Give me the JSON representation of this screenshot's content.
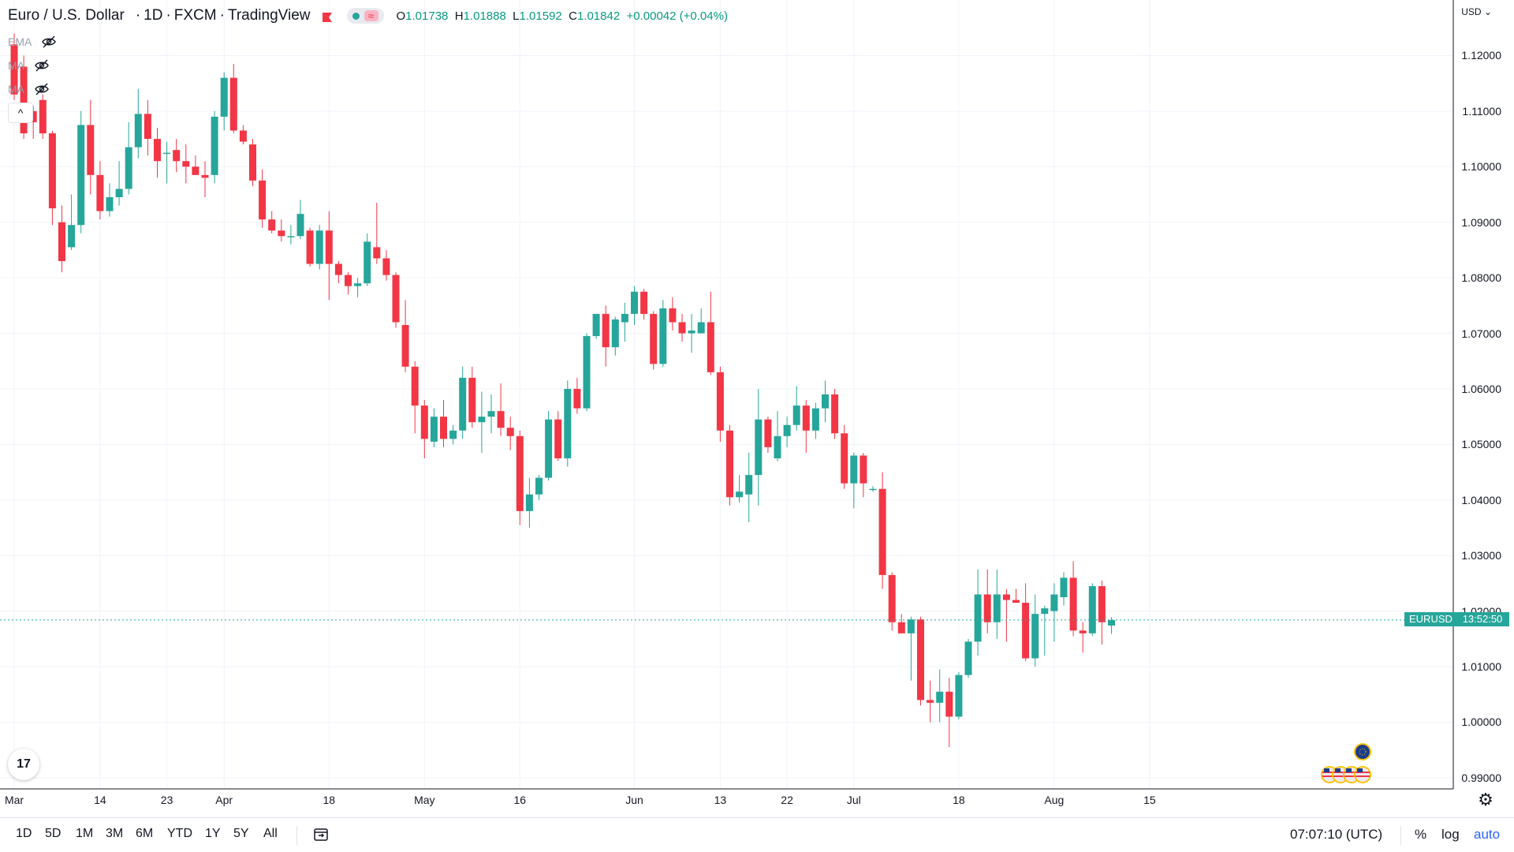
{
  "header": {
    "title": "Euro / U.S. Dollar",
    "interval": "1D",
    "exchange": "FXCM",
    "source": "TradingView",
    "ohlc": {
      "o_label": "O",
      "o": "1.01738",
      "h_label": "H",
      "h": "1.01888",
      "l_label": "L",
      "l": "1.01592",
      "c_label": "C",
      "c": "1.01842",
      "change": "+0.00042 (+0.04%)"
    }
  },
  "indicators": [
    {
      "label": "EMA",
      "icon": "eye-off-icon"
    },
    {
      "label": "MA",
      "icon": "eye-off-icon"
    },
    {
      "label": "MA",
      "icon": "eye-off-icon"
    }
  ],
  "collapse_label": "^",
  "currency_label": "USD",
  "price_scale_mode": "auto",
  "symbol_badge": "EURUSD",
  "countdown": "13:52:50",
  "logo_text": "17",
  "bottom_bar": {
    "ranges": [
      "1D",
      "5D",
      "1M",
      "3M",
      "6M",
      "YTD",
      "1Y",
      "5Y",
      "All"
    ],
    "clock": "07:07:10 (UTC)",
    "percent": "%",
    "log": "log",
    "auto": "auto"
  },
  "colors": {
    "up": "#26a69a",
    "down": "#f23645",
    "grid": "#f0f3fa",
    "axis": "#131722"
  },
  "chart_data": {
    "type": "candlestick",
    "title": "Euro / U.S. Dollar",
    "symbol": "EURUSD",
    "interval": "1D",
    "ylim": [
      0.988,
      1.13
    ],
    "y_ticks": [
      "1.12000",
      "1.11000",
      "1.10000",
      "1.09000",
      "1.08000",
      "1.07000",
      "1.06000",
      "1.05000",
      "1.04000",
      "1.03000",
      "1.02000",
      "1.01000",
      "1.00000",
      "0.99000"
    ],
    "x_ticks": [
      {
        "label": "Mar",
        "index": 0
      },
      {
        "label": "14",
        "index": 9
      },
      {
        "label": "23",
        "index": 16
      },
      {
        "label": "Apr",
        "index": 22
      },
      {
        "label": "18",
        "index": 33
      },
      {
        "label": "May",
        "index": 43
      },
      {
        "label": "16",
        "index": 53
      },
      {
        "label": "Jun",
        "index": 65
      },
      {
        "label": "13",
        "index": 74
      },
      {
        "label": "22",
        "index": 81
      },
      {
        "label": "Jul",
        "index": 88
      },
      {
        "label": "18",
        "index": 99
      },
      {
        "label": "Aug",
        "index": 109
      },
      {
        "label": "15",
        "index": 119
      }
    ],
    "candles": [
      {
        "o": 1.122,
        "h": 1.124,
        "l": 1.112,
        "c": 1.113
      },
      {
        "o": 1.118,
        "h": 1.12,
        "l": 1.105,
        "c": 1.106
      },
      {
        "o": 1.11,
        "h": 1.111,
        "l": 1.105,
        "c": 1.108
      },
      {
        "o": 1.112,
        "h": 1.113,
        "l": 1.105,
        "c": 1.106
      },
      {
        "o": 1.106,
        "h": 1.1065,
        "l": 1.0895,
        "c": 1.0925
      },
      {
        "o": 1.09,
        "h": 1.093,
        "l": 1.081,
        "c": 1.083
      },
      {
        "o": 1.0855,
        "h": 1.095,
        "l": 1.085,
        "c": 1.0895
      },
      {
        "o": 1.0895,
        "h": 1.11,
        "l": 1.088,
        "c": 1.1075
      },
      {
        "o": 1.1075,
        "h": 1.112,
        "l": 1.095,
        "c": 1.0985
      },
      {
        "o": 1.0985,
        "h": 1.101,
        "l": 1.0905,
        "c": 1.092
      },
      {
        "o": 1.092,
        "h": 1.097,
        "l": 1.091,
        "c": 1.0945
      },
      {
        "o": 1.0945,
        "h": 1.101,
        "l": 1.093,
        "c": 1.096
      },
      {
        "o": 1.096,
        "h": 1.108,
        "l": 1.095,
        "c": 1.1035
      },
      {
        "o": 1.1035,
        "h": 1.114,
        "l": 1.1015,
        "c": 1.1095
      },
      {
        "o": 1.1095,
        "h": 1.112,
        "l": 1.102,
        "c": 1.105
      },
      {
        "o": 1.105,
        "h": 1.107,
        "l": 1.098,
        "c": 1.101
      },
      {
        "o": 1.1025,
        "h": 1.1045,
        "l": 1.097,
        "c": 1.1025
      },
      {
        "o": 1.103,
        "h": 1.105,
        "l": 1.099,
        "c": 1.101
      },
      {
        "o": 1.101,
        "h": 1.104,
        "l": 1.097,
        "c": 1.1
      },
      {
        "o": 1.1,
        "h": 1.102,
        "l": 1.0985,
        "c": 1.0985
      },
      {
        "o": 1.0985,
        "h": 1.101,
        "l": 1.0945,
        "c": 1.098
      },
      {
        "o": 1.0985,
        "h": 1.11,
        "l": 1.097,
        "c": 1.109
      },
      {
        "o": 1.109,
        "h": 1.117,
        "l": 1.1065,
        "c": 1.116
      },
      {
        "o": 1.116,
        "h": 1.1185,
        "l": 1.106,
        "c": 1.1065
      },
      {
        "o": 1.1065,
        "h": 1.1075,
        "l": 1.104,
        "c": 1.1045
      },
      {
        "o": 1.104,
        "h": 1.105,
        "l": 1.0965,
        "c": 1.0975
      },
      {
        "o": 1.0975,
        "h": 1.0995,
        "l": 1.089,
        "c": 1.0905
      },
      {
        "o": 1.0905,
        "h": 1.092,
        "l": 1.088,
        "c": 1.0885
      },
      {
        "o": 1.0885,
        "h": 1.0905,
        "l": 1.0865,
        "c": 1.0875
      },
      {
        "o": 1.0875,
        "h": 1.0895,
        "l": 1.086,
        "c": 1.0875
      },
      {
        "o": 1.0875,
        "h": 1.094,
        "l": 1.087,
        "c": 1.0915
      },
      {
        "o": 1.0885,
        "h": 1.089,
        "l": 1.082,
        "c": 1.0825
      },
      {
        "o": 1.0825,
        "h": 1.0895,
        "l": 1.0815,
        "c": 1.0885
      },
      {
        "o": 1.0885,
        "h": 1.092,
        "l": 1.076,
        "c": 1.0825
      },
      {
        "o": 1.0825,
        "h": 1.083,
        "l": 1.079,
        "c": 1.0805
      },
      {
        "o": 1.0805,
        "h": 1.081,
        "l": 1.077,
        "c": 1.0785
      },
      {
        "o": 1.0785,
        "h": 1.08,
        "l": 1.0765,
        "c": 1.079
      },
      {
        "o": 1.079,
        "h": 1.088,
        "l": 1.0785,
        "c": 1.0865
      },
      {
        "o": 1.0855,
        "h": 1.0935,
        "l": 1.0825,
        "c": 1.0835
      },
      {
        "o": 1.0835,
        "h": 1.085,
        "l": 1.0795,
        "c": 1.0805
      },
      {
        "o": 1.0805,
        "h": 1.081,
        "l": 1.071,
        "c": 1.072
      },
      {
        "o": 1.0715,
        "h": 1.076,
        "l": 1.063,
        "c": 1.064
      },
      {
        "o": 1.064,
        "h": 1.065,
        "l": 1.052,
        "c": 1.057
      },
      {
        "o": 1.057,
        "h": 1.058,
        "l": 1.0475,
        "c": 1.051
      },
      {
        "o": 1.0505,
        "h": 1.0565,
        "l": 1.0495,
        "c": 1.055
      },
      {
        "o": 1.055,
        "h": 1.058,
        "l": 1.0495,
        "c": 1.051
      },
      {
        "o": 1.051,
        "h": 1.0535,
        "l": 1.05,
        "c": 1.0525
      },
      {
        "o": 1.0525,
        "h": 1.064,
        "l": 1.051,
        "c": 1.062
      },
      {
        "o": 1.062,
        "h": 1.064,
        "l": 1.053,
        "c": 1.054
      },
      {
        "o": 1.054,
        "h": 1.0595,
        "l": 1.0485,
        "c": 1.055
      },
      {
        "o": 1.055,
        "h": 1.059,
        "l": 1.052,
        "c": 1.056
      },
      {
        "o": 1.056,
        "h": 1.061,
        "l": 1.0515,
        "c": 1.053
      },
      {
        "o": 1.053,
        "h": 1.055,
        "l": 1.049,
        "c": 1.0515
      },
      {
        "o": 1.0515,
        "h": 1.0525,
        "l": 1.0355,
        "c": 1.038
      },
      {
        "o": 1.038,
        "h": 1.044,
        "l": 1.035,
        "c": 1.041
      },
      {
        "o": 1.041,
        "h": 1.0445,
        "l": 1.04,
        "c": 1.044
      },
      {
        "o": 1.044,
        "h": 1.056,
        "l": 1.0435,
        "c": 1.0545
      },
      {
        "o": 1.0545,
        "h": 1.056,
        "l": 1.047,
        "c": 1.0475
      },
      {
        "o": 1.0475,
        "h": 1.0615,
        "l": 1.046,
        "c": 1.06
      },
      {
        "o": 1.06,
        "h": 1.062,
        "l": 1.0555,
        "c": 1.0565
      },
      {
        "o": 1.0565,
        "h": 1.07,
        "l": 1.056,
        "c": 1.0695
      },
      {
        "o": 1.0695,
        "h": 1.0735,
        "l": 1.069,
        "c": 1.0735
      },
      {
        "o": 1.0735,
        "h": 1.075,
        "l": 1.064,
        "c": 1.0675
      },
      {
        "o": 1.0675,
        "h": 1.073,
        "l": 1.066,
        "c": 1.0725
      },
      {
        "o": 1.072,
        "h": 1.0755,
        "l": 1.0685,
        "c": 1.0735
      },
      {
        "o": 1.0735,
        "h": 1.0785,
        "l": 1.0715,
        "c": 1.0775
      },
      {
        "o": 1.0775,
        "h": 1.078,
        "l": 1.0725,
        "c": 1.0735
      },
      {
        "o": 1.0735,
        "h": 1.074,
        "l": 1.0635,
        "c": 1.0645
      },
      {
        "o": 1.0645,
        "h": 1.076,
        "l": 1.064,
        "c": 1.0745
      },
      {
        "o": 1.0745,
        "h": 1.0765,
        "l": 1.0705,
        "c": 1.072
      },
      {
        "o": 1.072,
        "h": 1.0735,
        "l": 1.0685,
        "c": 1.07
      },
      {
        "o": 1.07,
        "h": 1.0735,
        "l": 1.0665,
        "c": 1.0705
      },
      {
        "o": 1.07,
        "h": 1.0745,
        "l": 1.07,
        "c": 1.072
      },
      {
        "o": 1.072,
        "h": 1.0775,
        "l": 1.0625,
        "c": 1.063
      },
      {
        "o": 1.063,
        "h": 1.064,
        "l": 1.0505,
        "c": 1.0525
      },
      {
        "o": 1.0525,
        "h": 1.0535,
        "l": 1.039,
        "c": 1.0405
      },
      {
        "o": 1.0405,
        "h": 1.0445,
        "l": 1.0395,
        "c": 1.0415
      },
      {
        "o": 1.041,
        "h": 1.0485,
        "l": 1.036,
        "c": 1.0445
      },
      {
        "o": 1.0445,
        "h": 1.06,
        "l": 1.039,
        "c": 1.0545
      },
      {
        "o": 1.0545,
        "h": 1.055,
        "l": 1.0485,
        "c": 1.0495
      },
      {
        "o": 1.0475,
        "h": 1.056,
        "l": 1.047,
        "c": 1.0515
      },
      {
        "o": 1.0515,
        "h": 1.055,
        "l": 1.0495,
        "c": 1.0535
      },
      {
        "o": 1.0535,
        "h": 1.0605,
        "l": 1.0525,
        "c": 1.057
      },
      {
        "o": 1.057,
        "h": 1.058,
        "l": 1.0485,
        "c": 1.0525
      },
      {
        "o": 1.0525,
        "h": 1.0575,
        "l": 1.051,
        "c": 1.0565
      },
      {
        "o": 1.0565,
        "h": 1.0615,
        "l": 1.054,
        "c": 1.059
      },
      {
        "o": 1.059,
        "h": 1.06,
        "l": 1.051,
        "c": 1.052
      },
      {
        "o": 1.052,
        "h": 1.0535,
        "l": 1.042,
        "c": 1.043
      },
      {
        "o": 1.043,
        "h": 1.0485,
        "l": 1.0385,
        "c": 1.048
      },
      {
        "o": 1.048,
        "h": 1.0485,
        "l": 1.0405,
        "c": 1.043
      },
      {
        "o": 1.042,
        "h": 1.0425,
        "l": 1.0415,
        "c": 1.042
      },
      {
        "o": 1.042,
        "h": 1.045,
        "l": 1.024,
        "c": 1.0265
      },
      {
        "o": 1.0265,
        "h": 1.027,
        "l": 1.0165,
        "c": 1.018
      },
      {
        "o": 1.018,
        "h": 1.0195,
        "l": 1.016,
        "c": 1.016
      },
      {
        "o": 1.016,
        "h": 1.019,
        "l": 1.0075,
        "c": 1.0185
      },
      {
        "o": 1.0185,
        "h": 1.019,
        "l": 1.003,
        "c": 1.004
      },
      {
        "o": 1.004,
        "h": 1.0075,
        "l": 1.0,
        "c": 1.0035
      },
      {
        "o": 1.0035,
        "h": 1.0095,
        "l": 1.0,
        "c": 1.0055
      },
      {
        "o": 1.0055,
        "h": 1.008,
        "l": 0.9955,
        "c": 1.001
      },
      {
        "o": 1.001,
        "h": 1.009,
        "l": 1.0005,
        "c": 1.0085
      },
      {
        "o": 1.0085,
        "h": 1.015,
        "l": 1.008,
        "c": 1.0145
      },
      {
        "o": 1.0145,
        "h": 1.0275,
        "l": 1.012,
        "c": 1.023
      },
      {
        "o": 1.023,
        "h": 1.0275,
        "l": 1.016,
        "c": 1.018
      },
      {
        "o": 1.018,
        "h": 1.0275,
        "l": 1.015,
        "c": 1.023
      },
      {
        "o": 1.023,
        "h": 1.024,
        "l": 1.0145,
        "c": 1.022
      },
      {
        "o": 1.022,
        "h": 1.024,
        "l": 1.0215,
        "c": 1.0215
      },
      {
        "o": 1.0215,
        "h": 1.025,
        "l": 1.011,
        "c": 1.0115
      },
      {
        "o": 1.0115,
        "h": 1.023,
        "l": 1.01,
        "c": 1.0195
      },
      {
        "o": 1.0195,
        "h": 1.021,
        "l": 1.012,
        "c": 1.0205
      },
      {
        "o": 1.02,
        "h": 1.025,
        "l": 1.0145,
        "c": 1.023
      },
      {
        "o": 1.0225,
        "h": 1.027,
        "l": 1.021,
        "c": 1.026
      },
      {
        "o": 1.026,
        "h": 1.029,
        "l": 1.0155,
        "c": 1.0165
      },
      {
        "o": 1.0165,
        "h": 1.018,
        "l": 1.0125,
        "c": 1.016
      },
      {
        "o": 1.016,
        "h": 1.025,
        "l": 1.0155,
        "c": 1.0245
      },
      {
        "o": 1.0245,
        "h": 1.0255,
        "l": 1.014,
        "c": 1.018
      },
      {
        "o": 1.0174,
        "h": 1.0189,
        "l": 1.0159,
        "c": 1.0184
      }
    ]
  }
}
